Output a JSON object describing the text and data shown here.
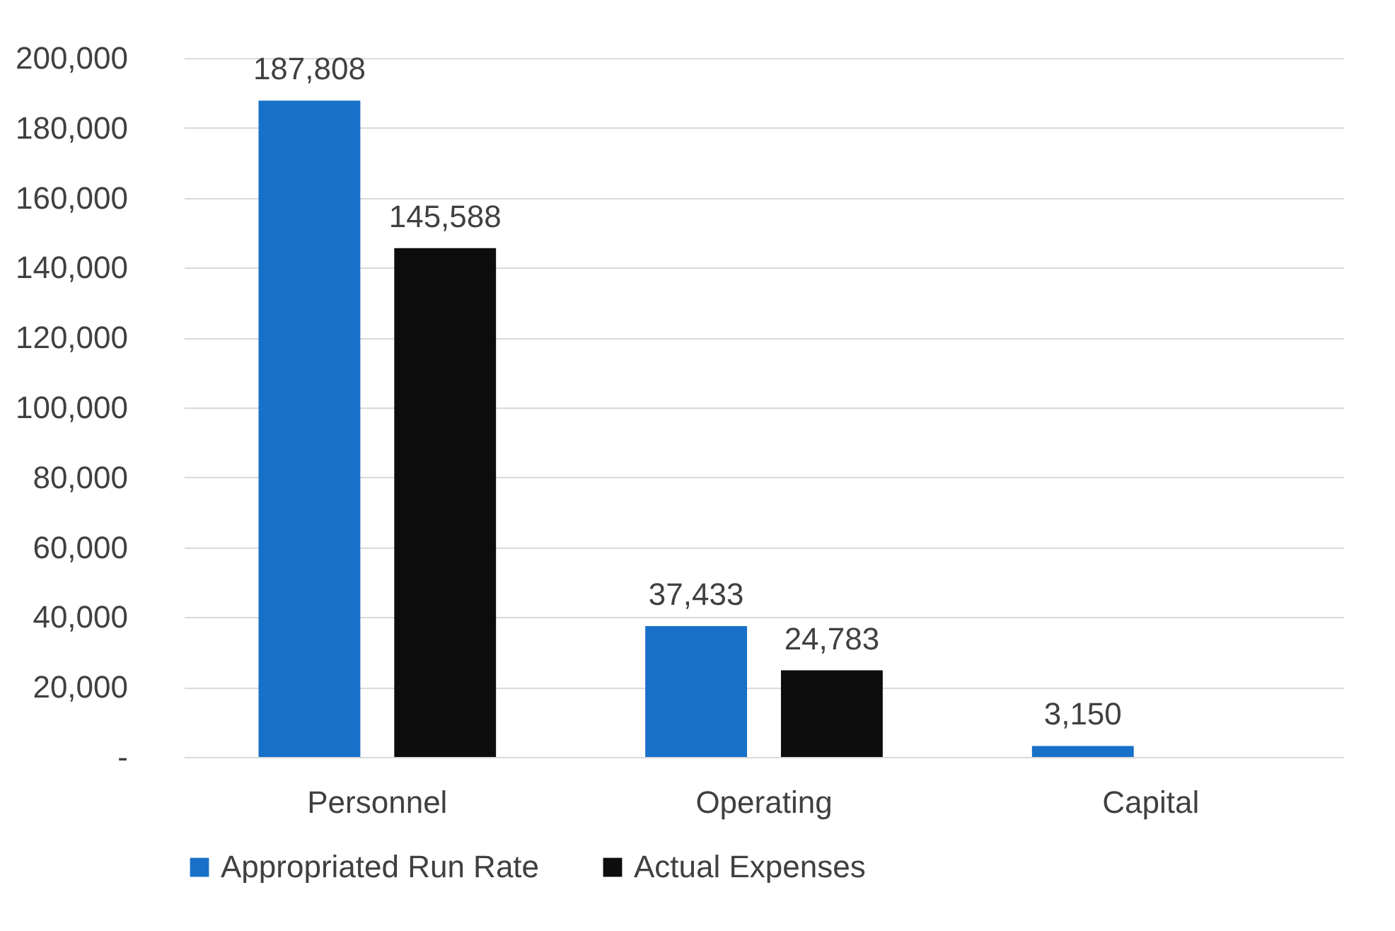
{
  "chart_data": {
    "type": "bar",
    "categories": [
      "Personnel",
      "Operating",
      "Capital"
    ],
    "series": [
      {
        "name": "Appropriated Run Rate",
        "color": "#1870c8",
        "values": [
          187808,
          37433,
          3150
        ],
        "value_labels": [
          "187,808",
          "37,433",
          "3,150"
        ]
      },
      {
        "name": "Actual Expenses",
        "color": "#0d0d0d",
        "values": [
          145588,
          24783,
          null
        ],
        "value_labels": [
          "145,588",
          "24,783",
          null
        ]
      }
    ],
    "ylim": [
      0,
      200000
    ],
    "yticks": [
      {
        "value": 0,
        "label": "-"
      },
      {
        "value": 20000,
        "label": "20,000"
      },
      {
        "value": 40000,
        "label": "40,000"
      },
      {
        "value": 60000,
        "label": "60,000"
      },
      {
        "value": 80000,
        "label": "80,000"
      },
      {
        "value": 100000,
        "label": "100,000"
      },
      {
        "value": 120000,
        "label": "120,000"
      },
      {
        "value": 140000,
        "label": "140,000"
      },
      {
        "value": 160000,
        "label": "160,000"
      },
      {
        "value": 180000,
        "label": "180,000"
      },
      {
        "value": 200000,
        "label": "200,000"
      }
    ],
    "grid": "y",
    "legend": "bottom"
  }
}
